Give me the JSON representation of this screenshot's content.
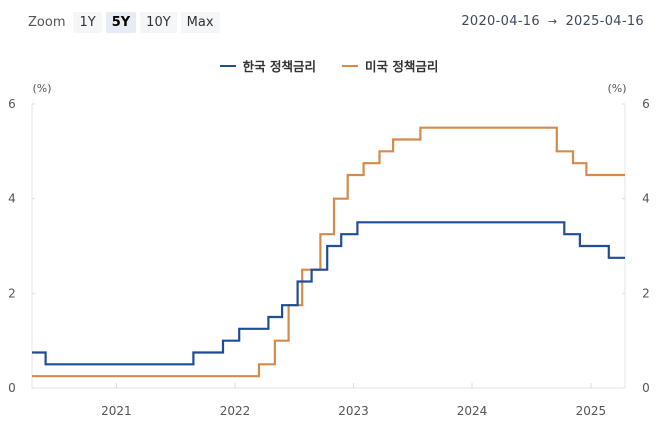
{
  "toolbar": {
    "zoom_label": "Zoom",
    "buttons": [
      {
        "label": "1Y",
        "active": false
      },
      {
        "label": "5Y",
        "active": true
      },
      {
        "label": "10Y",
        "active": false
      },
      {
        "label": "Max",
        "active": false
      }
    ],
    "range_from": "2020-04-16",
    "range_arrow": "→",
    "range_to": "2025-04-16"
  },
  "legend": [
    {
      "label": "한국 정책금리",
      "color": "#1f4e96"
    },
    {
      "label": "미국 정책금리",
      "color": "#d58a4a"
    }
  ],
  "chart_data": {
    "type": "line",
    "step": true,
    "title": "",
    "xlabel": "",
    "ylabel": "(%)",
    "ylabel_right": "(%)",
    "ylim": [
      0,
      6
    ],
    "yticks": [
      0,
      2,
      4,
      6
    ],
    "xticks": [
      "2021",
      "2022",
      "2023",
      "2024",
      "2025"
    ],
    "xrange": [
      "2020-04-16",
      "2025-04-16"
    ],
    "grid": false,
    "legend_position": "top",
    "series": [
      {
        "name": "한국 정책금리",
        "color": "#1f4e96",
        "points": [
          [
            "2020-04-16",
            0.75
          ],
          [
            "2020-05-28",
            0.5
          ],
          [
            "2021-08-26",
            0.75
          ],
          [
            "2021-11-25",
            1.0
          ],
          [
            "2022-01-14",
            1.25
          ],
          [
            "2022-04-14",
            1.5
          ],
          [
            "2022-05-26",
            1.75
          ],
          [
            "2022-07-13",
            2.25
          ],
          [
            "2022-08-25",
            2.5
          ],
          [
            "2022-10-12",
            3.0
          ],
          [
            "2022-11-24",
            3.25
          ],
          [
            "2023-01-13",
            3.5
          ],
          [
            "2024-10-11",
            3.25
          ],
          [
            "2024-11-28",
            3.0
          ],
          [
            "2025-02-25",
            2.75
          ],
          [
            "2025-04-16",
            2.75
          ]
        ]
      },
      {
        "name": "미국 정책금리",
        "color": "#d58a4a",
        "points": [
          [
            "2020-04-16",
            0.25
          ],
          [
            "2022-03-16",
            0.5
          ],
          [
            "2022-05-04",
            1.0
          ],
          [
            "2022-06-15",
            1.75
          ],
          [
            "2022-07-27",
            2.5
          ],
          [
            "2022-09-21",
            3.25
          ],
          [
            "2022-11-02",
            4.0
          ],
          [
            "2022-12-14",
            4.5
          ],
          [
            "2023-02-01",
            4.75
          ],
          [
            "2023-03-22",
            5.0
          ],
          [
            "2023-05-03",
            5.25
          ],
          [
            "2023-07-26",
            5.5
          ],
          [
            "2024-09-18",
            5.0
          ],
          [
            "2024-11-07",
            4.75
          ],
          [
            "2024-12-18",
            4.5
          ],
          [
            "2025-04-16",
            4.5
          ]
        ]
      }
    ]
  }
}
